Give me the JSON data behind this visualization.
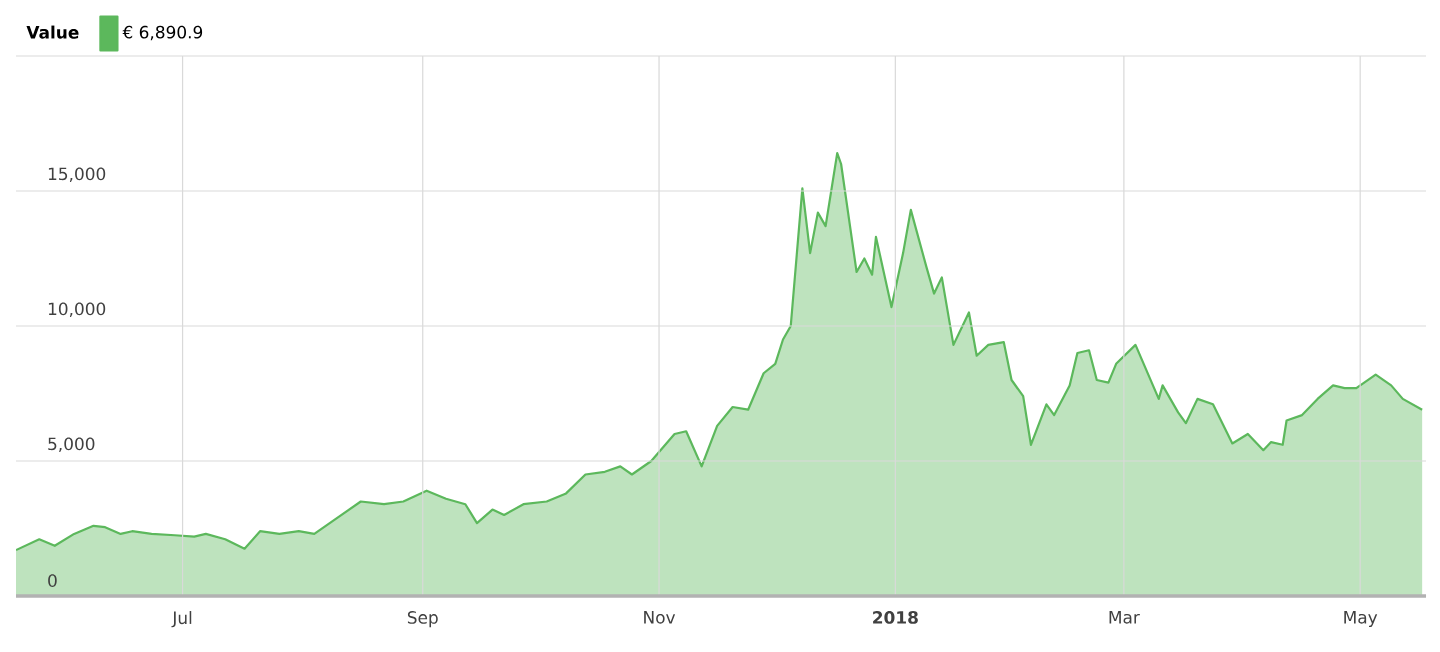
{
  "chart_data": {
    "type": "area",
    "legend_title": "Value",
    "x": [
      "2017-05-19",
      "2017-05-25",
      "2017-05-29",
      "2017-06-03",
      "2017-06-08",
      "2017-06-11",
      "2017-06-15",
      "2017-06-18",
      "2017-06-23",
      "2017-06-29",
      "2017-07-04",
      "2017-07-07",
      "2017-07-12",
      "2017-07-17",
      "2017-07-21",
      "2017-07-26",
      "2017-07-31",
      "2017-08-04",
      "2017-08-09",
      "2017-08-16",
      "2017-08-22",
      "2017-08-27",
      "2017-09-02",
      "2017-09-07",
      "2017-09-12",
      "2017-09-15",
      "2017-09-19",
      "2017-09-22",
      "2017-09-27",
      "2017-10-03",
      "2017-10-08",
      "2017-10-13",
      "2017-10-18",
      "2017-10-22",
      "2017-10-25",
      "2017-10-30",
      "2017-11-05",
      "2017-11-08",
      "2017-11-12",
      "2017-11-16",
      "2017-11-20",
      "2017-11-24",
      "2017-11-28",
      "2017-12-01",
      "2017-12-03",
      "2017-12-05",
      "2017-12-08",
      "2017-12-10",
      "2017-12-12",
      "2017-12-14",
      "2017-12-17",
      "2017-12-18",
      "2017-12-22",
      "2017-12-24",
      "2017-12-26",
      "2017-12-27",
      "2017-12-29",
      "2017-12-31",
      "2018-01-03",
      "2018-01-05",
      "2018-01-09",
      "2018-01-11",
      "2018-01-13",
      "2018-01-16",
      "2018-01-20",
      "2018-01-22",
      "2018-01-25",
      "2018-01-29",
      "2018-01-31",
      "2018-02-03",
      "2018-02-05",
      "2018-02-09",
      "2018-02-11",
      "2018-02-15",
      "2018-02-17",
      "2018-02-20",
      "2018-02-22",
      "2018-02-25",
      "2018-02-27",
      "2018-03-04",
      "2018-03-10",
      "2018-03-11",
      "2018-03-15",
      "2018-03-17",
      "2018-03-20",
      "2018-03-24",
      "2018-03-29",
      "2018-04-02",
      "2018-04-06",
      "2018-04-08",
      "2018-04-11",
      "2018-04-12",
      "2018-04-16",
      "2018-04-20",
      "2018-04-24",
      "2018-04-27",
      "2018-04-30",
      "2018-05-05",
      "2018-05-09",
      "2018-05-12",
      "2018-05-17"
    ],
    "series": [
      {
        "name": "€ 6,890.9",
        "color": "#5cb85c",
        "values": [
          1700,
          2100,
          1860,
          2300,
          2600,
          2550,
          2300,
          2400,
          2300,
          2250,
          2200,
          2300,
          2100,
          1750,
          2400,
          2300,
          2400,
          2300,
          2800,
          3500,
          3400,
          3500,
          3900,
          3600,
          3400,
          2700,
          3200,
          3000,
          3400,
          3500,
          3800,
          4500,
          4600,
          4800,
          4500,
          5000,
          6000,
          6100,
          4800,
          6300,
          7000,
          6900,
          8250,
          8600,
          9500,
          10000,
          15100,
          12700,
          14200,
          13700,
          16400,
          16000,
          12000,
          12500,
          11900,
          13300,
          12000,
          10700,
          12700,
          14300,
          12200,
          11200,
          11800,
          9300,
          10500,
          8900,
          9300,
          9400,
          8000,
          7400,
          5600,
          7100,
          6700,
          7800,
          9000,
          9100,
          8000,
          7900,
          8600,
          9300,
          7300,
          7800,
          6800,
          6400,
          7300,
          7100,
          5650,
          6000,
          5400,
          5700,
          5600,
          6500,
          6700,
          7300,
          7800,
          7700,
          7700,
          8200,
          7800,
          7300,
          6900
        ]
      }
    ],
    "xlim": [
      "2017-05-19",
      "2018-05-18"
    ],
    "xticks": [
      {
        "value": "2017-07-01",
        "label": "Jul"
      },
      {
        "value": "2017-09-01",
        "label": "Sep"
      },
      {
        "value": "2017-11-01",
        "label": "Nov"
      },
      {
        "value": "2018-01-01",
        "label": "2018"
      },
      {
        "value": "2018-03-01",
        "label": "Mar"
      },
      {
        "value": "2018-05-01",
        "label": "May"
      }
    ],
    "ylim": [
      0,
      20000
    ],
    "yticks": [
      0,
      {
        "value": 5000,
        "label": "5,000"
      },
      {
        "value": 10000,
        "label": "10,000"
      },
      {
        "value": 15000,
        "label": "15,000"
      },
      {
        "value": 20000,
        "label": null
      }
    ],
    "grid": true,
    "legend": "top left"
  }
}
